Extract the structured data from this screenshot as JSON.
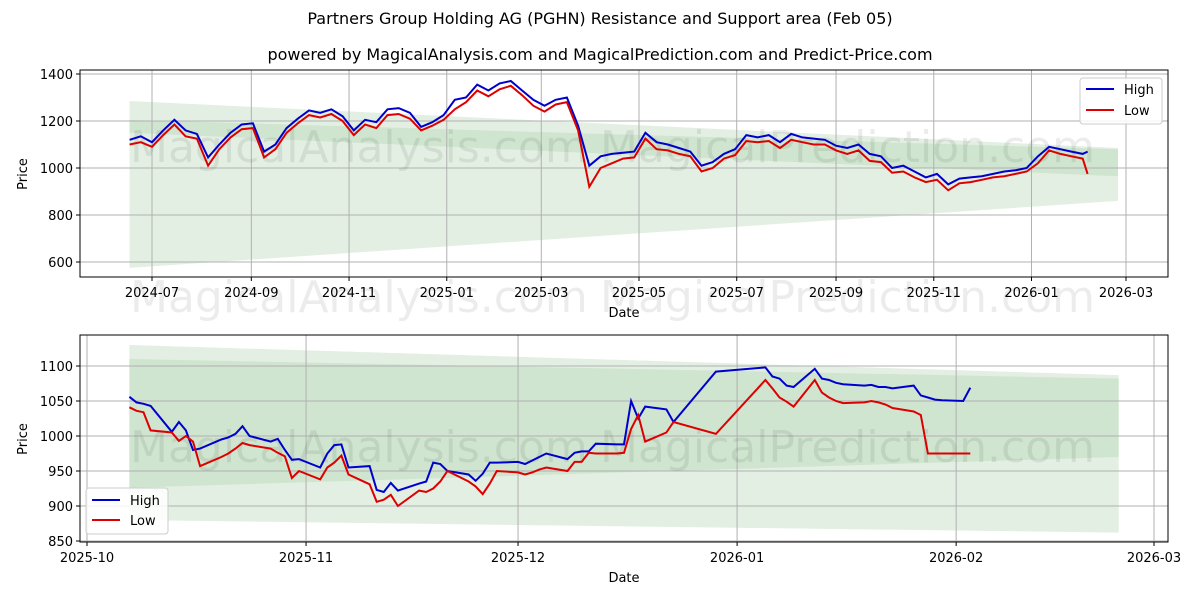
{
  "header": {
    "title": "Partners Group Holding AG (PGHN) Resistance and Support area (Feb 05)",
    "subtitle": "powered by MagicalAnalysis.com and MagicalPrediction.com and Predict-Price.com"
  },
  "watermarks": [
    "MagicalAnalysis.com",
    "MagicalPrediction.com"
  ],
  "colors": {
    "high": "#0000cc",
    "low": "#dd0000",
    "band_outer": "#e3efe3",
    "band_inner": "#cfe5cf",
    "grid": "#b0b0b0"
  },
  "chart_data": [
    {
      "type": "line",
      "title": "",
      "xlabel": "Date",
      "ylabel": "Price",
      "ylim": [
        530,
        1410
      ],
      "grid": true,
      "legend_position": "upper right",
      "x_ticks": [
        "2024-07",
        "2024-09",
        "2024-11",
        "2025-01",
        "2025-03",
        "2025-05",
        "2025-07",
        "2025-09",
        "2025-11",
        "2026-01",
        "2026-03"
      ],
      "y_ticks": [
        600,
        800,
        1000,
        1200,
        1400
      ],
      "legend": [
        "High",
        "Low"
      ],
      "x": [
        "2024-06-17",
        "2024-06-24",
        "2024-07-01",
        "2024-07-08",
        "2024-07-15",
        "2024-07-22",
        "2024-07-29",
        "2024-08-05",
        "2024-08-12",
        "2024-08-19",
        "2024-08-26",
        "2024-09-02",
        "2024-09-09",
        "2024-09-16",
        "2024-09-23",
        "2024-09-30",
        "2024-10-07",
        "2024-10-14",
        "2024-10-21",
        "2024-10-28",
        "2024-11-04",
        "2024-11-11",
        "2024-11-18",
        "2024-11-25",
        "2024-12-02",
        "2024-12-09",
        "2024-12-16",
        "2024-12-23",
        "2024-12-30",
        "2025-01-06",
        "2025-01-13",
        "2025-01-20",
        "2025-01-27",
        "2025-02-03",
        "2025-02-10",
        "2025-02-17",
        "2025-02-24",
        "2025-03-03",
        "2025-03-10",
        "2025-03-17",
        "2025-03-24",
        "2025-03-31",
        "2025-04-07",
        "2025-04-14",
        "2025-04-21",
        "2025-04-28",
        "2025-05-05",
        "2025-05-12",
        "2025-05-19",
        "2025-05-26",
        "2025-06-02",
        "2025-06-09",
        "2025-06-16",
        "2025-06-23",
        "2025-06-30",
        "2025-07-07",
        "2025-07-14",
        "2025-07-21",
        "2025-07-28",
        "2025-08-04",
        "2025-08-11",
        "2025-08-18",
        "2025-08-25",
        "2025-09-01",
        "2025-09-08",
        "2025-09-15",
        "2025-09-22",
        "2025-09-29",
        "2025-10-06",
        "2025-10-13",
        "2025-10-20",
        "2025-10-27",
        "2025-11-03",
        "2025-11-10",
        "2025-11-17",
        "2025-11-24",
        "2025-12-01",
        "2025-12-08",
        "2025-12-15",
        "2025-12-22",
        "2025-12-29",
        "2026-01-05",
        "2026-01-12",
        "2026-01-19",
        "2026-01-26",
        "2026-02-02",
        "2026-02-05"
      ],
      "series": [
        {
          "name": "High",
          "values": [
            1120,
            1135,
            1110,
            1160,
            1205,
            1160,
            1145,
            1045,
            1100,
            1150,
            1185,
            1190,
            1070,
            1100,
            1170,
            1210,
            1245,
            1235,
            1250,
            1220,
            1160,
            1205,
            1195,
            1250,
            1255,
            1235,
            1175,
            1195,
            1225,
            1290,
            1300,
            1355,
            1330,
            1360,
            1370,
            1330,
            1290,
            1265,
            1290,
            1300,
            1180,
            1010,
            1050,
            1060,
            1065,
            1070,
            1150,
            1110,
            1100,
            1085,
            1070,
            1010,
            1025,
            1060,
            1080,
            1140,
            1130,
            1140,
            1110,
            1145,
            1130,
            1125,
            1120,
            1095,
            1085,
            1100,
            1060,
            1050,
            1000,
            1010,
            985,
            960,
            975,
            930,
            955,
            960,
            965,
            975,
            985,
            990,
            1000,
            1050,
            1090,
            1080,
            1070,
            1060,
            1070
          ]
        },
        {
          "name": "Low",
          "values": [
            1100,
            1110,
            1090,
            1140,
            1185,
            1135,
            1125,
            1010,
            1080,
            1130,
            1165,
            1170,
            1045,
            1080,
            1150,
            1190,
            1225,
            1215,
            1230,
            1200,
            1140,
            1185,
            1170,
            1225,
            1230,
            1210,
            1160,
            1180,
            1205,
            1250,
            1280,
            1330,
            1305,
            1335,
            1350,
            1310,
            1265,
            1240,
            1270,
            1280,
            1160,
            920,
            1000,
            1020,
            1040,
            1045,
            1125,
            1080,
            1075,
            1060,
            1050,
            985,
            1000,
            1040,
            1055,
            1115,
            1110,
            1115,
            1085,
            1120,
            1110,
            1100,
            1100,
            1075,
            1060,
            1075,
            1030,
            1025,
            980,
            985,
            960,
            940,
            950,
            905,
            935,
            940,
            950,
            960,
            965,
            975,
            985,
            1020,
            1075,
            1060,
            1050,
            1040,
            975
          ]
        }
      ],
      "bands": {
        "outer": {
          "start": {
            "x": "2024-06-17",
            "upper": 1285,
            "lower": 575
          },
          "end": {
            "x": "2026-02-24",
            "upper": 1085,
            "lower": 860
          }
        },
        "inner": {
          "start": {
            "x": "2024-06-17",
            "upper": 1205,
            "lower": 1150
          },
          "end": {
            "x": "2026-02-24",
            "upper": 1080,
            "lower": 965
          }
        }
      }
    },
    {
      "type": "line",
      "title": "",
      "xlabel": "Date",
      "ylabel": "Price",
      "ylim": [
        845,
        1140
      ],
      "grid": true,
      "legend_position": "lower left",
      "x_ticks": [
        "2025-10",
        "2025-11",
        "2025-12",
        "2026-01",
        "2026-02",
        "2026-03"
      ],
      "y_ticks": [
        850,
        900,
        950,
        1000,
        1050,
        1100
      ],
      "legend": [
        "High",
        "Low"
      ],
      "x": [
        "2025-10-07",
        "2025-10-08",
        "2025-10-09",
        "2025-10-10",
        "2025-10-13",
        "2025-10-14",
        "2025-10-15",
        "2025-10-16",
        "2025-10-17",
        "2025-10-20",
        "2025-10-21",
        "2025-10-22",
        "2025-10-23",
        "2025-10-24",
        "2025-10-27",
        "2025-10-28",
        "2025-10-29",
        "2025-10-30",
        "2025-10-31",
        "2025-11-03",
        "2025-11-04",
        "2025-11-05",
        "2025-11-06",
        "2025-11-07",
        "2025-11-10",
        "2025-11-11",
        "2025-11-12",
        "2025-11-13",
        "2025-11-14",
        "2025-11-17",
        "2025-11-18",
        "2025-11-19",
        "2025-11-20",
        "2025-11-21",
        "2025-11-24",
        "2025-11-25",
        "2025-11-26",
        "2025-11-27",
        "2025-11-28",
        "2025-12-01",
        "2025-12-02",
        "2025-12-03",
        "2025-12-04",
        "2025-12-05",
        "2025-12-08",
        "2025-12-09",
        "2025-12-10",
        "2025-12-11",
        "2025-12-12",
        "2025-12-15",
        "2025-12-16",
        "2025-12-17",
        "2025-12-18",
        "2025-12-19",
        "2025-12-22",
        "2025-12-23",
        "2025-12-29",
        "2026-01-05",
        "2026-01-06",
        "2026-01-07",
        "2026-01-08",
        "2026-01-09",
        "2026-01-12",
        "2026-01-13",
        "2026-01-14",
        "2026-01-15",
        "2026-01-16",
        "2026-01-19",
        "2026-01-20",
        "2026-01-21",
        "2026-01-22",
        "2026-01-23",
        "2026-01-26",
        "2026-01-27",
        "2026-01-28",
        "2026-01-29",
        "2026-01-30",
        "2026-02-02",
        "2026-02-03"
      ],
      "series": [
        {
          "name": "High",
          "values": [
            1056,
            1048,
            1046,
            1043,
            1006,
            1020,
            1008,
            980,
            982,
            995,
            998,
            1003,
            1014,
            1000,
            992,
            996,
            980,
            966,
            967,
            955,
            975,
            987,
            988,
            955,
            957,
            923,
            920,
            933,
            922,
            932,
            935,
            962,
            960,
            950,
            945,
            936,
            946,
            962,
            962,
            963,
            960,
            965,
            970,
            975,
            967,
            976,
            978,
            978,
            989,
            988,
            988,
            1050,
            1025,
            1042,
            1038,
            1020,
            1092,
            1098,
            1085,
            1082,
            1072,
            1070,
            1096,
            1082,
            1080,
            1076,
            1074,
            1072,
            1073,
            1070,
            1070,
            1068,
            1072,
            1058,
            1055,
            1052,
            1051,
            1050,
            1069
          ]
        },
        {
          "name": "Low",
          "values": [
            1041,
            1036,
            1034,
            1008,
            1005,
            993,
            1000,
            992,
            957,
            970,
            975,
            982,
            990,
            987,
            982,
            976,
            971,
            940,
            950,
            938,
            955,
            962,
            972,
            945,
            931,
            906,
            909,
            916,
            900,
            922,
            920,
            925,
            935,
            950,
            935,
            928,
            917,
            932,
            950,
            948,
            945,
            948,
            952,
            955,
            950,
            963,
            963,
            976,
            975,
            975,
            976,
            1010,
            1030,
            992,
            1005,
            1020,
            1003,
            1080,
            1068,
            1055,
            1049,
            1042,
            1080,
            1062,
            1055,
            1050,
            1047,
            1048,
            1050,
            1048,
            1045,
            1040,
            1035,
            1030,
            975,
            975,
            975,
            975,
            975
          ]
        }
      ],
      "bands": {
        "outer": {
          "start": {
            "x": "2025-10-07",
            "upper": 1130,
            "lower": 880
          },
          "end": {
            "x": "2026-02-24",
            "upper": 1087,
            "lower": 862
          }
        },
        "inner": {
          "start": {
            "x": "2025-10-07",
            "upper": 1110,
            "lower": 926
          },
          "end": {
            "x": "2026-02-24",
            "upper": 1082,
            "lower": 970
          }
        }
      }
    }
  ]
}
